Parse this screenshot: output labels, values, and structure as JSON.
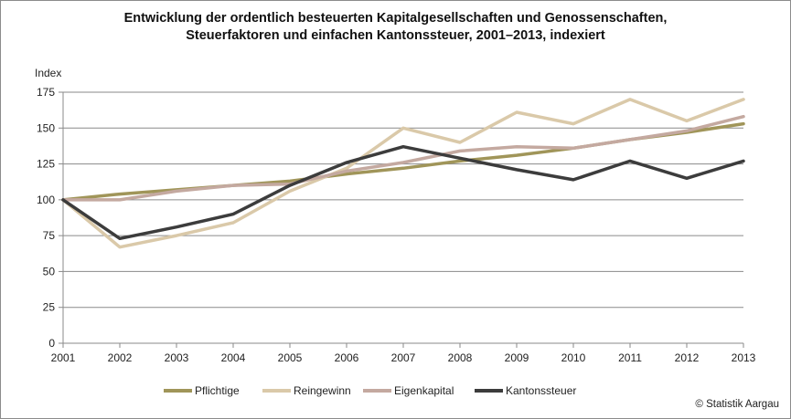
{
  "chart_data": {
    "type": "line",
    "title_line1": "Entwicklung der ordentlich besteuerten Kapitalgesellschaften und Genossenschaften,",
    "title_line2": "Steuerfaktoren und einfachen Kantonssteuer, 2001–2013, indexiert",
    "ylabel": "Index",
    "xlabel": "",
    "x": [
      "2001",
      "2002",
      "2003",
      "2004",
      "2005",
      "2006",
      "2007",
      "2008",
      "2009",
      "2010",
      "2011",
      "2012",
      "2013"
    ],
    "ylim": [
      0,
      175
    ],
    "yticks": [
      0,
      25,
      50,
      75,
      100,
      125,
      150,
      175
    ],
    "grid": true,
    "legend_position": "bottom",
    "series": [
      {
        "name": "Pflichtige",
        "color": "#a09559",
        "values": [
          100,
          104,
          107,
          110,
          113,
          118,
          122,
          127,
          131,
          136,
          142,
          147,
          153
        ]
      },
      {
        "name": "Reingewinn",
        "color": "#dac9a9",
        "values": [
          100,
          67,
          75,
          84,
          106,
          122,
          150,
          140,
          161,
          153,
          170,
          155,
          170
        ]
      },
      {
        "name": "Eigenkapital",
        "color": "#c4a9a0",
        "values": [
          100,
          100,
          106,
          110,
          111,
          120,
          126,
          134,
          137,
          136,
          142,
          148,
          158
        ]
      },
      {
        "name": "Kantonssteuer",
        "color": "#3c3c3c",
        "values": [
          100,
          73,
          81,
          90,
          110,
          126,
          137,
          129,
          121,
          114,
          127,
          115,
          127
        ]
      }
    ],
    "credit": "© Statistik Aargau"
  }
}
